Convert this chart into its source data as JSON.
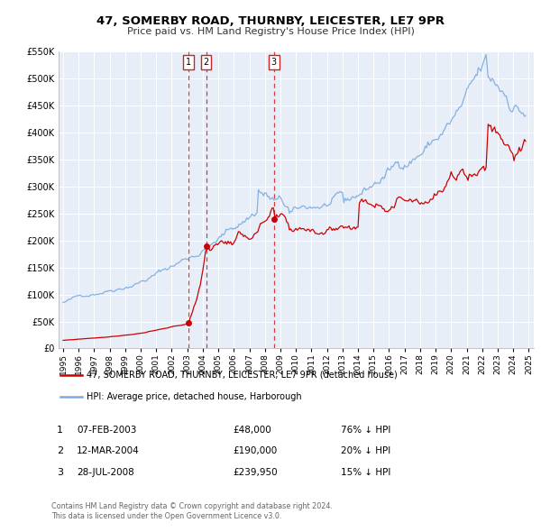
{
  "title": "47, SOMERBY ROAD, THURNBY, LEICESTER, LE7 9PR",
  "subtitle": "Price paid vs. HM Land Registry's House Price Index (HPI)",
  "legend_label_red": "47, SOMERBY ROAD, THURNBY, LEICESTER, LE7 9PR (detached house)",
  "legend_label_blue": "HPI: Average price, detached house, Harborough",
  "footer_line1": "Contains HM Land Registry data © Crown copyright and database right 2024.",
  "footer_line2": "This data is licensed under the Open Government Licence v3.0.",
  "transactions": [
    {
      "num": 1,
      "date": "07-FEB-2003",
      "date_val": 2003.09,
      "price": 48000,
      "price_str": "£48,000",
      "pct": "76% ↓ HPI"
    },
    {
      "num": 2,
      "date": "12-MAR-2004",
      "date_val": 2004.21,
      "price": 190000,
      "price_str": "£190,000",
      "pct": "20% ↓ HPI"
    },
    {
      "num": 3,
      "date": "28-JUL-2008",
      "date_val": 2008.58,
      "price": 239950,
      "price_str": "£239,950",
      "pct": "15% ↓ HPI"
    }
  ],
  "bg_color": "#e8eef8",
  "red_color": "#cc0000",
  "blue_color": "#7aaadd",
  "ylim": [
    0,
    550000
  ],
  "yticks": [
    0,
    50000,
    100000,
    150000,
    200000,
    250000,
    300000,
    350000,
    400000,
    450000,
    500000,
    550000
  ],
  "xmin": 1994.7,
  "xmax": 2025.3
}
